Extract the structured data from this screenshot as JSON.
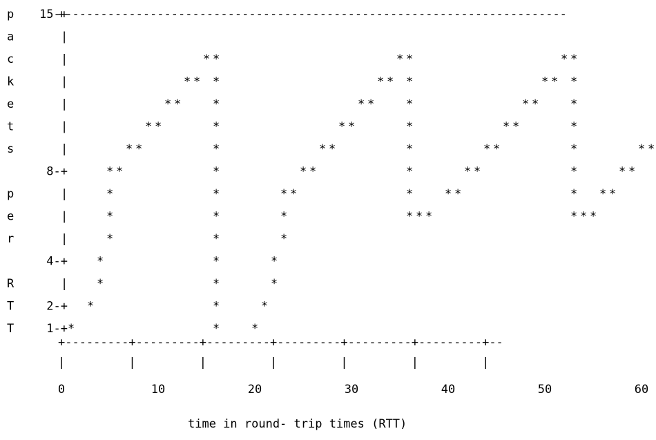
{
  "chart_data": {
    "type": "scatter",
    "style": "ascii-art",
    "ylabel_chars": [
      "p",
      "a",
      "c",
      "k",
      "e",
      "t",
      "s",
      "",
      "p",
      "e",
      "r",
      "",
      "R",
      "T",
      "T"
    ],
    "ylabel": "packets per RTT",
    "xlabel": "time in round- trip times (RTT)",
    "y_ticks": [
      {
        "value": 15,
        "label": "15-+"
      },
      {
        "value": 8,
        "label": "8-+"
      },
      {
        "value": 4,
        "label": "4-+"
      },
      {
        "value": 2,
        "label": "2-+"
      },
      {
        "value": 1,
        "label": "1-+"
      }
    ],
    "x_ticks": [
      "0",
      "10",
      "20",
      "30",
      "40",
      "50",
      "60"
    ],
    "grid": false,
    "legend": "none",
    "axis_lines": {
      "top": "+-----------------------------------------------------------------------",
      "bottom": "+---------+---------+---------+---------+---------+---------+--",
      "tick_marks": "|         |         |         |         |         |         |"
    },
    "rows": [
      {
        "y": 15,
        "marks": ""
      },
      {
        "y": 14,
        "marks": ""
      },
      {
        "y": 13,
        "marks": "              **                  **               **"
      },
      {
        "y": 12,
        "marks": "            ** *                ** *             ** *"
      },
      {
        "y": 11,
        "marks": "          **   *              **   *           **   *"
      },
      {
        "y": 10,
        "marks": "        **     *            **     *         **     *        **"
      },
      {
        "y": 9,
        "marks": "      **       *          **       *       **       *      **"
      },
      {
        "y": 8,
        "marks": "    **         *        **         *     **         *    **"
      },
      {
        "y": 7,
        "marks": "    *          *      **           *   **           *  **"
      },
      {
        "y": 6,
        "marks": "    *          *      *            ***              ***"
      },
      {
        "y": 5,
        "marks": "    *          *      *"
      },
      {
        "y": 4,
        "marks": "   *           *     *"
      },
      {
        "y": 3,
        "marks": "   *           *     *"
      },
      {
        "y": 2,
        "marks": "  *            *    *"
      },
      {
        "y": 1,
        "marks": "*              *   *"
      }
    ]
  }
}
